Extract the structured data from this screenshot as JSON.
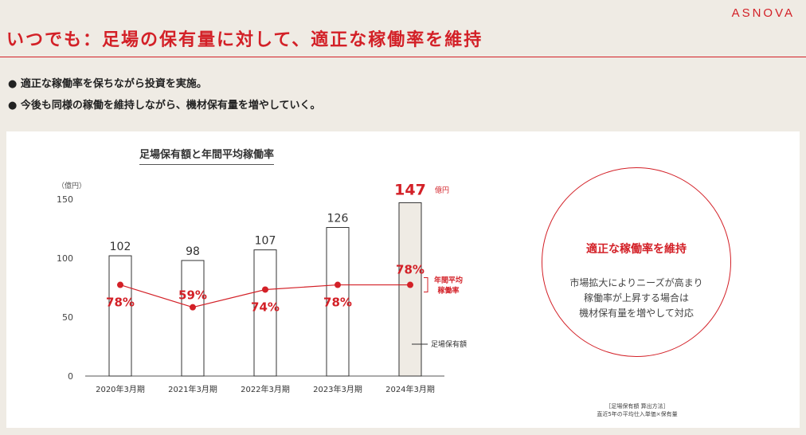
{
  "brand": "ASNOVA",
  "title": "いつでも：足場の保有量に対して、適正な稼働率を維持",
  "bullets": [
    "● 適正な稼働率を保ちながら投資を実施。",
    "● 今後も同様の稼働を維持しながら、機材保有量を増やしていく。"
  ],
  "colors": {
    "accent": "#d32027",
    "highlight_bar": "#efebe4"
  },
  "chart_data": {
    "type": "bar",
    "title": "足場保有額と年間平均稼働率",
    "ylabel": "（億円）",
    "ylim": [
      0,
      150
    ],
    "yticks": [
      0,
      50,
      100,
      150
    ],
    "categories": [
      "2020年3月期",
      "2021年3月期",
      "2022年3月期",
      "2023年3月期",
      "2024年3月期"
    ],
    "series": [
      {
        "name": "足場保有額",
        "values": [
          102,
          98,
          107,
          126,
          147
        ]
      },
      {
        "name": "年間平均稼働率",
        "values": [
          78,
          59,
          74,
          78,
          78
        ],
        "unit": "%"
      }
    ],
    "highlight_index": 4,
    "highlight_unit": "億円",
    "line_label": "年間平均稼働率",
    "bar_legend": "足場保有額"
  },
  "callout": {
    "title": "適正な稼働率を維持",
    "lines": [
      "市場拡大によりニーズが高まり",
      "稼働率が上昇する場合は",
      "機材保有量を増やして対応"
    ]
  },
  "footnote": {
    "label": "［足場保有額 算出方法］",
    "text": "直近5年の平均仕入単価×保有量"
  }
}
